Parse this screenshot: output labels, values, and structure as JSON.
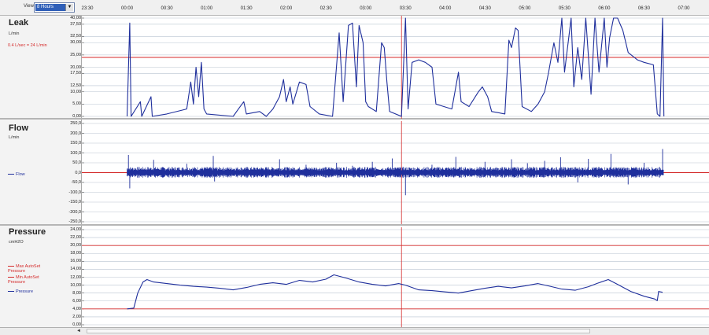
{
  "toolbar": {
    "view_label": "View",
    "view_value": "8 Hours",
    "view_button_glyph": "▼"
  },
  "time_axis": [
    "23:30",
    "00:00",
    "00:30",
    "01:00",
    "01:30",
    "02:00",
    "02:30",
    "03:00",
    "03:30",
    "04:00",
    "04:30",
    "05:00",
    "05:30",
    "06:00",
    "06:30",
    "07:00"
  ],
  "scrollbar": {
    "left_glyph": "◄"
  },
  "colors": {
    "series": "#1f2f9c",
    "threshold": "#d42a2a",
    "cursor": "#d42a2a",
    "grid": "#b9c4d0"
  },
  "chart_data": [
    {
      "type": "line",
      "title": "Leak",
      "ylabel": "L/min",
      "annotation": "0.4 L/sec = 24 L/min",
      "ylim": [
        0,
        40
      ],
      "yticks": [
        "40,00",
        "37,50",
        "32,50",
        "30,00",
        "25,00",
        "20,00",
        "17,50",
        "12,50",
        "10,00",
        "5,00",
        "0,00"
      ],
      "ytick_values": [
        40,
        37.5,
        32.5,
        30,
        25,
        20,
        17.5,
        12.5,
        10,
        5,
        0
      ],
      "threshold": 24,
      "cursor_time": "03:27",
      "x_range": [
        "23:30",
        "07:00"
      ],
      "series": [
        {
          "values": [
            [
              "00:00",
              0
            ],
            [
              "00:02",
              38
            ],
            [
              "00:03",
              0
            ],
            [
              "00:10",
              6
            ],
            [
              "00:11",
              0
            ],
            [
              "00:18",
              8
            ],
            [
              "00:19",
              0
            ],
            [
              "00:30",
              1
            ],
            [
              "00:45",
              3
            ],
            [
              "00:48",
              14
            ],
            [
              "00:50",
              5
            ],
            [
              "00:52",
              20
            ],
            [
              "00:54",
              8
            ],
            [
              "00:56",
              22
            ],
            [
              "00:58",
              3
            ],
            [
              "01:00",
              1
            ],
            [
              "01:20",
              0
            ],
            [
              "01:24",
              3
            ],
            [
              "01:28",
              6
            ],
            [
              "01:30",
              1
            ],
            [
              "01:40",
              2
            ],
            [
              "01:45",
              0
            ],
            [
              "01:50",
              3
            ],
            [
              "01:55",
              8
            ],
            [
              "01:58",
              15
            ],
            [
              "02:00",
              6
            ],
            [
              "02:03",
              12
            ],
            [
              "02:05",
              5
            ],
            [
              "02:10",
              14
            ],
            [
              "02:15",
              13
            ],
            [
              "02:18",
              4
            ],
            [
              "02:25",
              1
            ],
            [
              "02:35",
              0
            ],
            [
              "02:40",
              34
            ],
            [
              "02:43",
              6
            ],
            [
              "02:47",
              37
            ],
            [
              "02:50",
              38
            ],
            [
              "02:53",
              12
            ],
            [
              "02:55",
              37
            ],
            [
              "02:58",
              30
            ],
            [
              "03:00",
              6
            ],
            [
              "03:02",
              4
            ],
            [
              "03:08",
              2
            ],
            [
              "03:12",
              30
            ],
            [
              "03:14",
              28
            ],
            [
              "03:16",
              14
            ],
            [
              "03:18",
              2
            ],
            [
              "03:27",
              0
            ],
            [
              "03:30",
              40
            ],
            [
              "03:32",
              3
            ],
            [
              "03:35",
              22
            ],
            [
              "03:40",
              23
            ],
            [
              "03:45",
              22
            ],
            [
              "03:50",
              20
            ],
            [
              "03:53",
              5
            ],
            [
              "04:05",
              3
            ],
            [
              "04:10",
              18
            ],
            [
              "04:12",
              6
            ],
            [
              "04:18",
              4
            ],
            [
              "04:25",
              10
            ],
            [
              "04:28",
              12
            ],
            [
              "04:32",
              8
            ],
            [
              "04:35",
              2
            ],
            [
              "04:45",
              1
            ],
            [
              "04:48",
              31
            ],
            [
              "04:50",
              28
            ],
            [
              "04:53",
              36
            ],
            [
              "04:55",
              35
            ],
            [
              "04:58",
              4
            ],
            [
              "05:05",
              2
            ],
            [
              "05:10",
              5
            ],
            [
              "05:15",
              10
            ],
            [
              "05:18",
              18
            ],
            [
              "05:22",
              30
            ],
            [
              "05:25",
              22
            ],
            [
              "05:28",
              42
            ],
            [
              "05:30",
              18
            ],
            [
              "05:35",
              42
            ],
            [
              "05:37",
              12
            ],
            [
              "05:40",
              28
            ],
            [
              "05:43",
              15
            ],
            [
              "05:46",
              40
            ],
            [
              "05:50",
              9
            ],
            [
              "05:53",
              42
            ],
            [
              "05:56",
              18
            ],
            [
              "06:00",
              40
            ],
            [
              "06:02",
              20
            ],
            [
              "06:04",
              32
            ],
            [
              "06:07",
              42
            ],
            [
              "06:10",
              40
            ],
            [
              "06:14",
              35
            ],
            [
              "06:18",
              26
            ],
            [
              "06:25",
              23
            ],
            [
              "06:30",
              22
            ],
            [
              "06:37",
              21
            ],
            [
              "06:40",
              1
            ],
            [
              "06:42",
              0
            ],
            [
              "06:44",
              40
            ],
            [
              "06:45",
              0
            ]
          ]
        }
      ]
    },
    {
      "type": "line",
      "title": "Flow",
      "ylabel": "L/min",
      "ylim": [
        -250,
        250
      ],
      "yticks": [
        "250,0",
        "200,0",
        "150,0",
        "100,0",
        "50,0",
        "0,0",
        "-50,0",
        "-100,0",
        "-150,0",
        "-200,0",
        "-250,0"
      ],
      "ytick_values": [
        250,
        200,
        150,
        100,
        50,
        0,
        -50,
        -100,
        -150,
        -200,
        -250
      ],
      "threshold": 0,
      "cursor_time": "03:27",
      "x_range": [
        "23:30",
        "07:00"
      ],
      "series": [
        {
          "name": "Flow",
          "envelope_start": "00:00",
          "envelope_end": "06:45",
          "typical_amplitude": 25,
          "spikes": [
            [
              "00:01",
              90
            ],
            [
              "00:02",
              -80
            ],
            [
              "00:20",
              65
            ],
            [
              "00:45",
              45
            ],
            [
              "01:05",
              85
            ],
            [
              "01:06",
              -45
            ],
            [
              "01:55",
              68
            ],
            [
              "02:15",
              40
            ],
            [
              "02:38",
              50
            ],
            [
              "02:50",
              35
            ],
            [
              "03:05",
              55
            ],
            [
              "03:20",
              72
            ],
            [
              "03:30",
              -115
            ],
            [
              "03:50",
              40
            ],
            [
              "04:08",
              80
            ],
            [
              "04:30",
              55
            ],
            [
              "04:50",
              68
            ],
            [
              "05:02",
              48
            ],
            [
              "05:15",
              60
            ],
            [
              "05:27",
              78
            ],
            [
              "05:40",
              -50
            ],
            [
              "05:48",
              70
            ],
            [
              "06:05",
              95
            ],
            [
              "06:18",
              -60
            ],
            [
              "06:30",
              50
            ],
            [
              "06:44",
              120
            ]
          ]
        }
      ]
    },
    {
      "type": "line",
      "title": "Pressure",
      "ylabel": "cmH2O",
      "ylim": [
        0,
        24
      ],
      "yticks": [
        "24,00",
        "22,00",
        "20,00",
        "18,00",
        "16,00",
        "14,00",
        "12,00",
        "10,00",
        "8,00",
        "6,00",
        "4,00",
        "2,00",
        "0,00"
      ],
      "ytick_values": [
        24,
        22,
        20,
        18,
        16,
        14,
        12,
        10,
        8,
        6,
        4,
        2,
        0
      ],
      "thresholds": [
        20,
        4
      ],
      "cursor_time": "03:27",
      "x_range": [
        "23:30",
        "07:00"
      ],
      "legend": [
        "Max AutoSet Pressure",
        "Min AutoSet Pressure",
        "Pressure"
      ],
      "series": [
        {
          "name": "Pressure",
          "values": [
            [
              "00:00",
              4
            ],
            [
              "00:05",
              4.2
            ],
            [
              "00:08",
              8
            ],
            [
              "00:12",
              10.8
            ],
            [
              "00:15",
              11.4
            ],
            [
              "00:20",
              10.8
            ],
            [
              "00:30",
              10.4
            ],
            [
              "00:40",
              10
            ],
            [
              "00:50",
              9.7
            ],
            [
              "01:00",
              9.5
            ],
            [
              "01:10",
              9.2
            ],
            [
              "01:20",
              8.8
            ],
            [
              "01:30",
              9.4
            ],
            [
              "01:40",
              10.2
            ],
            [
              "01:50",
              10.6
            ],
            [
              "02:00",
              10.2
            ],
            [
              "02:10",
              11.2
            ],
            [
              "02:20",
              10.8
            ],
            [
              "02:30",
              11.5
            ],
            [
              "02:36",
              12.6
            ],
            [
              "02:45",
              11.8
            ],
            [
              "02:55",
              10.8
            ],
            [
              "03:05",
              10.2
            ],
            [
              "03:15",
              9.8
            ],
            [
              "03:25",
              10.4
            ],
            [
              "03:30",
              10
            ],
            [
              "03:40",
              8.8
            ],
            [
              "03:50",
              8.6
            ],
            [
              "04:00",
              8.3
            ],
            [
              "04:10",
              8
            ],
            [
              "04:20",
              8.6
            ],
            [
              "04:30",
              9.2
            ],
            [
              "04:40",
              9.7
            ],
            [
              "04:50",
              9.3
            ],
            [
              "05:00",
              9.8
            ],
            [
              "05:10",
              10.4
            ],
            [
              "05:18",
              9.8
            ],
            [
              "05:28",
              9
            ],
            [
              "05:38",
              8.7
            ],
            [
              "05:48",
              9.6
            ],
            [
              "05:55",
              10.5
            ],
            [
              "06:03",
              11.4
            ],
            [
              "06:10",
              10.2
            ],
            [
              "06:20",
              8.4
            ],
            [
              "06:30",
              7.2
            ],
            [
              "06:38",
              6.5
            ],
            [
              "06:40",
              6.1
            ],
            [
              "06:41",
              8.4
            ],
            [
              "06:44",
              8.2
            ]
          ]
        }
      ]
    }
  ]
}
